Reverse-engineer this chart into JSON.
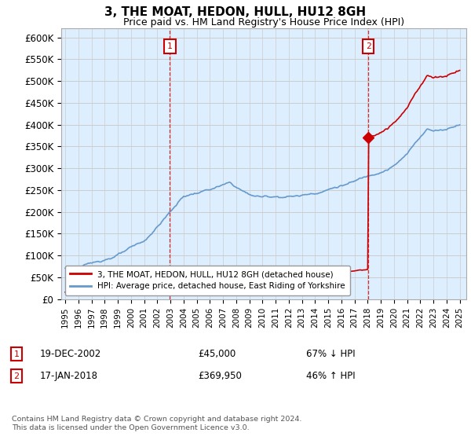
{
  "title": "3, THE MOAT, HEDON, HULL, HU12 8GH",
  "subtitle": "Price paid vs. HM Land Registry's House Price Index (HPI)",
  "legend_line1": "3, THE MOAT, HEDON, HULL, HU12 8GH (detached house)",
  "legend_line2": "HPI: Average price, detached house, East Riding of Yorkshire",
  "annotation1_label": "1",
  "annotation1_date_str": "19-DEC-2002",
  "annotation1_year": 2002.96,
  "annotation1_price": 45000,
  "annotation1_price_str": "£45,000",
  "annotation1_pct": "67% ↓ HPI",
  "annotation2_label": "2",
  "annotation2_date_str": "17-JAN-2018",
  "annotation2_year": 2018.04,
  "annotation2_price": 369950,
  "annotation2_price_str": "£369,950",
  "annotation2_pct": "46% ↑ HPI",
  "footer": "Contains HM Land Registry data © Crown copyright and database right 2024.\nThis data is licensed under the Open Government Licence v3.0.",
  "red_color": "#cc0000",
  "blue_color": "#6699cc",
  "bg_fill_color": "#ddeeff",
  "background_color": "#ffffff",
  "grid_color": "#cccccc",
  "ylim": [
    0,
    620000
  ],
  "yticks": [
    0,
    50000,
    100000,
    150000,
    200000,
    250000,
    300000,
    350000,
    400000,
    450000,
    500000,
    550000,
    600000
  ],
  "ytick_labels": [
    "£0",
    "£50K",
    "£100K",
    "£150K",
    "£200K",
    "£250K",
    "£300K",
    "£350K",
    "£400K",
    "£450K",
    "£500K",
    "£550K",
    "£600K"
  ],
  "xstart_year": 1995,
  "xend_year": 2025
}
